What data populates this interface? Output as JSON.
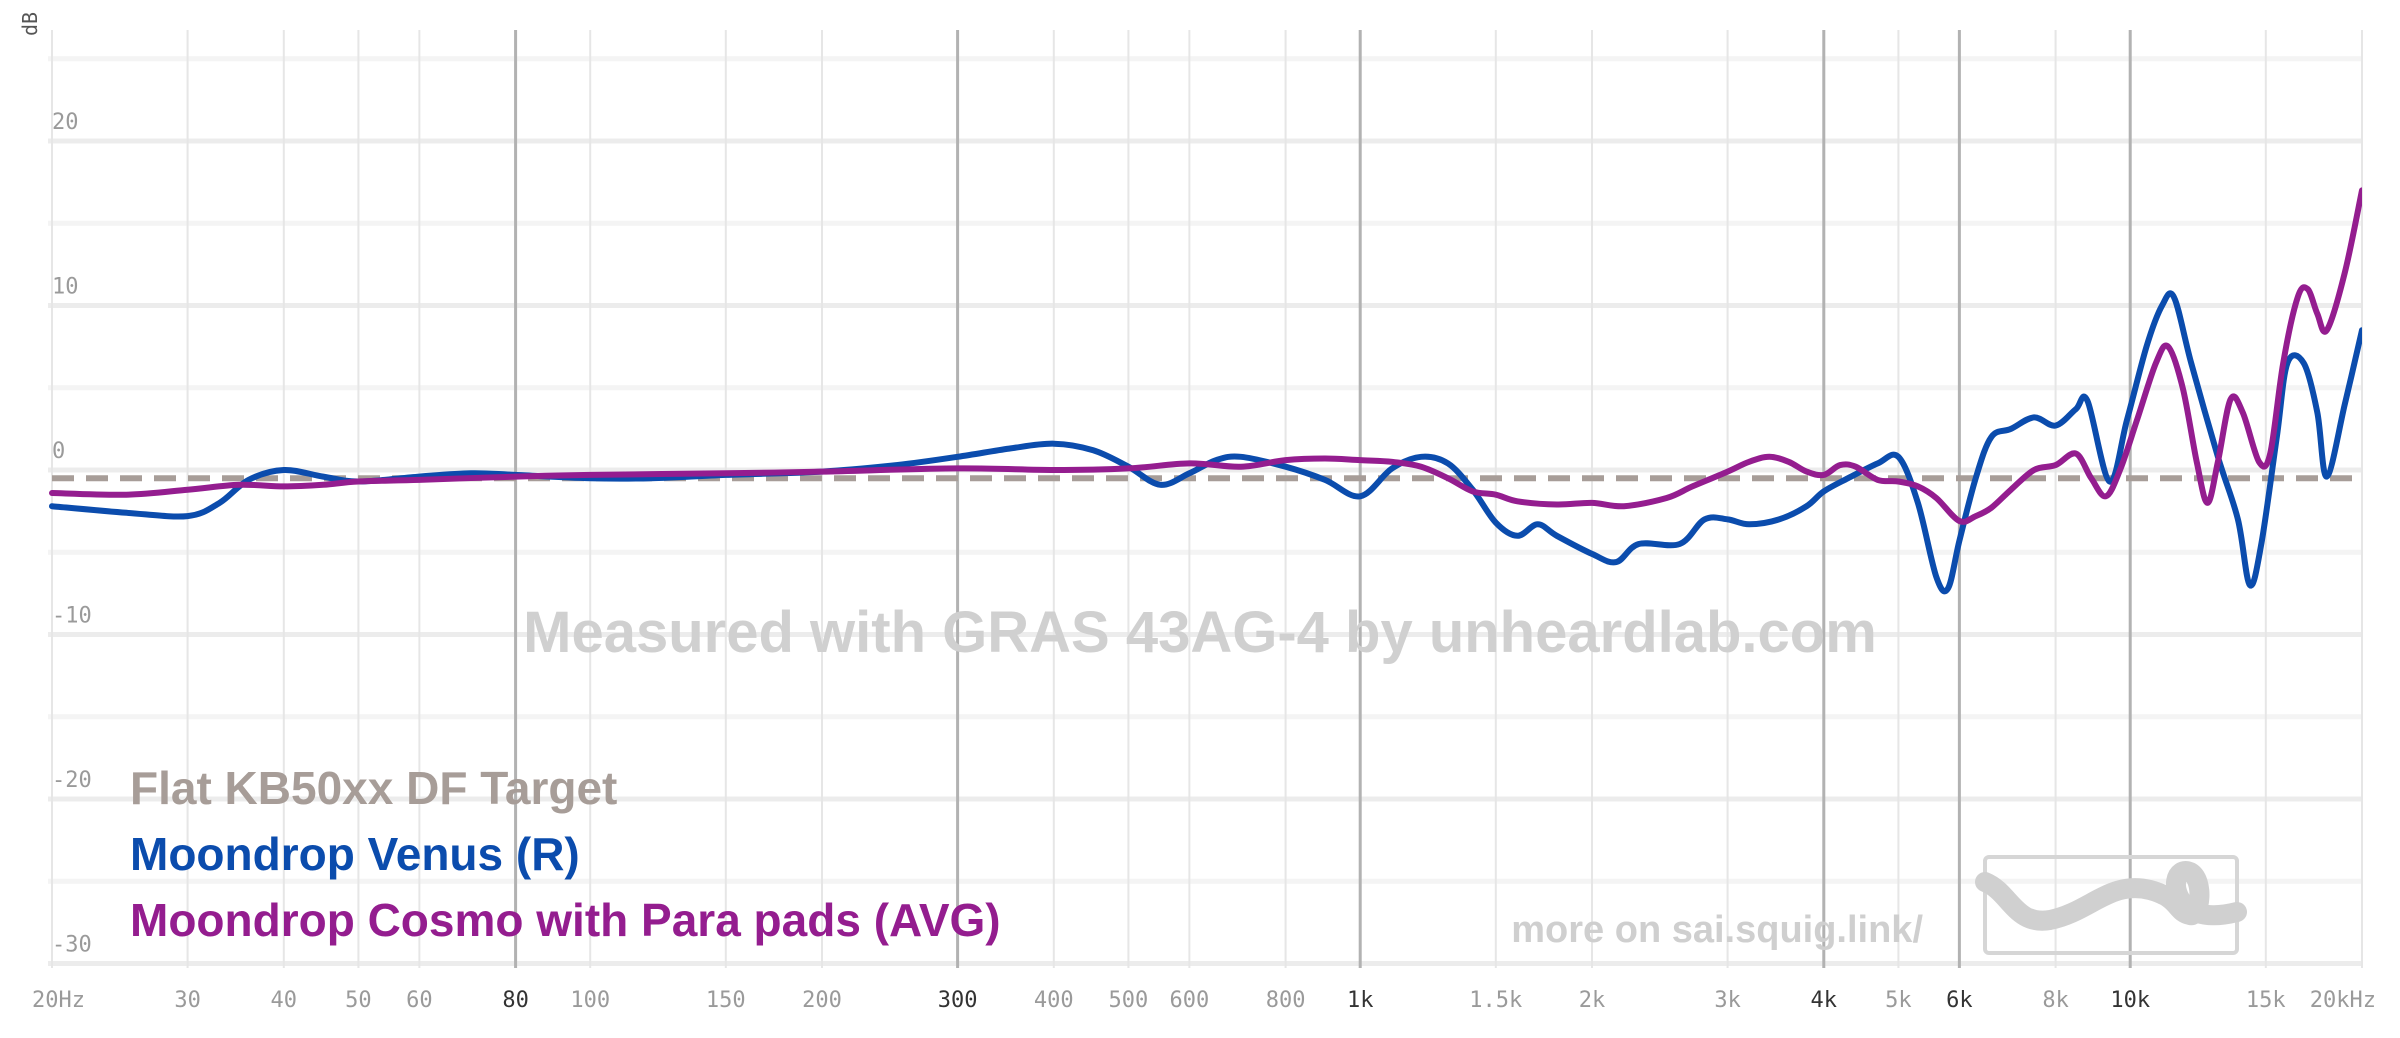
{
  "chart_data": {
    "type": "line",
    "ylabel": "dB",
    "ylim": [
      -30,
      25
    ],
    "xlim": [
      20,
      20000
    ],
    "x_scale": "log",
    "grid": true,
    "legend_position": "bottom-left",
    "x_ticks": [
      {
        "value": 20,
        "label": "20Hz",
        "major": false
      },
      {
        "value": 30,
        "label": "30",
        "major": false
      },
      {
        "value": 40,
        "label": "40",
        "major": false
      },
      {
        "value": 50,
        "label": "50",
        "major": false
      },
      {
        "value": 60,
        "label": "60",
        "major": false
      },
      {
        "value": 80,
        "label": "80",
        "major": true
      },
      {
        "value": 100,
        "label": "100",
        "major": false
      },
      {
        "value": 150,
        "label": "150",
        "major": false
      },
      {
        "value": 200,
        "label": "200",
        "major": false
      },
      {
        "value": 300,
        "label": "300",
        "major": true
      },
      {
        "value": 400,
        "label": "400",
        "major": false
      },
      {
        "value": 500,
        "label": "500",
        "major": false
      },
      {
        "value": 600,
        "label": "600",
        "major": false
      },
      {
        "value": 800,
        "label": "800",
        "major": false
      },
      {
        "value": 1000,
        "label": "1k",
        "major": true
      },
      {
        "value": 1500,
        "label": "1.5k",
        "major": false
      },
      {
        "value": 2000,
        "label": "2k",
        "major": false
      },
      {
        "value": 3000,
        "label": "3k",
        "major": false
      },
      {
        "value": 4000,
        "label": "4k",
        "major": true
      },
      {
        "value": 5000,
        "label": "5k",
        "major": false
      },
      {
        "value": 6000,
        "label": "6k",
        "major": true
      },
      {
        "value": 8000,
        "label": "8k",
        "major": false
      },
      {
        "value": 10000,
        "label": "10k",
        "major": true
      },
      {
        "value": 15000,
        "label": "15k",
        "major": false
      },
      {
        "value": 20000,
        "label": "20kHz",
        "major": false
      }
    ],
    "y_ticks": [
      {
        "value": 20,
        "label": "20"
      },
      {
        "value": 10,
        "label": "10"
      },
      {
        "value": 0,
        "label": "0"
      },
      {
        "value": -10,
        "label": "-10"
      },
      {
        "value": -20,
        "label": "-20"
      },
      {
        "value": -30,
        "label": "-30"
      }
    ],
    "watermark": "Measured with GRAS 43AG-4 by unheardlab.com",
    "credit": "more on sai.squig.link/",
    "series": [
      {
        "name": "Flat KB50xx DF Target",
        "color": "#a79d98",
        "dashed": true,
        "points": [
          [
            20,
            -0.5
          ],
          [
            20000,
            -0.5
          ]
        ]
      },
      {
        "name": "Moondrop Venus (R)",
        "color": "#0b4cad",
        "dashed": false,
        "points": [
          [
            20,
            -2.2
          ],
          [
            25,
            -2.6
          ],
          [
            30,
            -2.8
          ],
          [
            33,
            -2.0
          ],
          [
            36,
            -0.6
          ],
          [
            40,
            0.0
          ],
          [
            45,
            -0.4
          ],
          [
            50,
            -0.7
          ],
          [
            60,
            -0.4
          ],
          [
            70,
            -0.2
          ],
          [
            80,
            -0.3
          ],
          [
            100,
            -0.5
          ],
          [
            120,
            -0.5
          ],
          [
            150,
            -0.3
          ],
          [
            200,
            -0.1
          ],
          [
            250,
            0.3
          ],
          [
            300,
            0.8
          ],
          [
            350,
            1.3
          ],
          [
            400,
            1.6
          ],
          [
            450,
            1.2
          ],
          [
            500,
            0.2
          ],
          [
            550,
            -0.9
          ],
          [
            600,
            -0.2
          ],
          [
            650,
            0.6
          ],
          [
            700,
            0.8
          ],
          [
            800,
            0.2
          ],
          [
            900,
            -0.6
          ],
          [
            1000,
            -1.6
          ],
          [
            1100,
            0.1
          ],
          [
            1200,
            0.8
          ],
          [
            1300,
            0.4
          ],
          [
            1400,
            -1.2
          ],
          [
            1500,
            -3.2
          ],
          [
            1600,
            -4.0
          ],
          [
            1700,
            -3.3
          ],
          [
            1800,
            -4.0
          ],
          [
            2000,
            -5.1
          ],
          [
            2150,
            -5.6
          ],
          [
            2300,
            -4.5
          ],
          [
            2600,
            -4.5
          ],
          [
            2800,
            -3.0
          ],
          [
            3000,
            -3.0
          ],
          [
            3200,
            -3.3
          ],
          [
            3500,
            -3.0
          ],
          [
            3800,
            -2.2
          ],
          [
            4000,
            -1.3
          ],
          [
            4300,
            -0.5
          ],
          [
            4700,
            0.4
          ],
          [
            5000,
            0.8
          ],
          [
            5300,
            -2.0
          ],
          [
            5600,
            -6.5
          ],
          [
            5800,
            -7.2
          ],
          [
            6000,
            -4.3
          ],
          [
            6300,
            -0.5
          ],
          [
            6600,
            2.0
          ],
          [
            7000,
            2.5
          ],
          [
            7500,
            3.2
          ],
          [
            8000,
            2.7
          ],
          [
            8500,
            3.7
          ],
          [
            8800,
            4.2
          ],
          [
            9400,
            -0.7
          ],
          [
            9900,
            3.0
          ],
          [
            10500,
            7.5
          ],
          [
            11000,
            10.0
          ],
          [
            11400,
            10.5
          ],
          [
            12000,
            6.5
          ],
          [
            13000,
            0.8
          ],
          [
            13800,
            -3.0
          ],
          [
            14300,
            -7.0
          ],
          [
            14800,
            -4.5
          ],
          [
            15500,
            2.0
          ],
          [
            16000,
            6.5
          ],
          [
            16800,
            6.5
          ],
          [
            17500,
            3.5
          ],
          [
            18000,
            -0.4
          ],
          [
            19000,
            4.0
          ],
          [
            20000,
            8.5
          ]
        ]
      },
      {
        "name": "Moondrop Cosmo with Para pads (AVG)",
        "color": "#941d8f",
        "dashed": false,
        "points": [
          [
            20,
            -1.4
          ],
          [
            25,
            -1.5
          ],
          [
            30,
            -1.2
          ],
          [
            35,
            -0.9
          ],
          [
            40,
            -1.0
          ],
          [
            45,
            -0.9
          ],
          [
            50,
            -0.7
          ],
          [
            60,
            -0.6
          ],
          [
            80,
            -0.4
          ],
          [
            100,
            -0.3
          ],
          [
            150,
            -0.2
          ],
          [
            200,
            -0.1
          ],
          [
            300,
            0.1
          ],
          [
            400,
            0.0
          ],
          [
            500,
            0.1
          ],
          [
            600,
            0.4
          ],
          [
            700,
            0.2
          ],
          [
            800,
            0.6
          ],
          [
            900,
            0.7
          ],
          [
            1000,
            0.6
          ],
          [
            1100,
            0.5
          ],
          [
            1200,
            0.2
          ],
          [
            1300,
            -0.5
          ],
          [
            1400,
            -1.3
          ],
          [
            1500,
            -1.5
          ],
          [
            1600,
            -1.9
          ],
          [
            1800,
            -2.1
          ],
          [
            2000,
            -2.0
          ],
          [
            2200,
            -2.2
          ],
          [
            2500,
            -1.7
          ],
          [
            2700,
            -1.0
          ],
          [
            3000,
            -0.1
          ],
          [
            3200,
            0.5
          ],
          [
            3400,
            0.8
          ],
          [
            3600,
            0.5
          ],
          [
            3800,
            -0.1
          ],
          [
            4000,
            -0.3
          ],
          [
            4200,
            0.3
          ],
          [
            4400,
            0.2
          ],
          [
            4700,
            -0.6
          ],
          [
            5000,
            -0.7
          ],
          [
            5300,
            -1.0
          ],
          [
            5600,
            -1.7
          ],
          [
            6000,
            -3.1
          ],
          [
            6300,
            -2.8
          ],
          [
            6600,
            -2.3
          ],
          [
            7000,
            -1.2
          ],
          [
            7500,
            0.0
          ],
          [
            8000,
            0.3
          ],
          [
            8500,
            1.0
          ],
          [
            8900,
            -0.5
          ],
          [
            9300,
            -1.6
          ],
          [
            9700,
            0.0
          ],
          [
            10200,
            3.0
          ],
          [
            10800,
            6.5
          ],
          [
            11200,
            7.5
          ],
          [
            11700,
            5.0
          ],
          [
            12200,
            0.5
          ],
          [
            12600,
            -2.0
          ],
          [
            13000,
            0.5
          ],
          [
            13500,
            4.3
          ],
          [
            14000,
            3.5
          ],
          [
            14700,
            0.5
          ],
          [
            15200,
            1.0
          ],
          [
            15800,
            6.5
          ],
          [
            16500,
            10.5
          ],
          [
            17000,
            11.0
          ],
          [
            17500,
            9.5
          ],
          [
            18000,
            8.5
          ],
          [
            19000,
            12.0
          ],
          [
            20000,
            17.0
          ]
        ]
      }
    ]
  }
}
